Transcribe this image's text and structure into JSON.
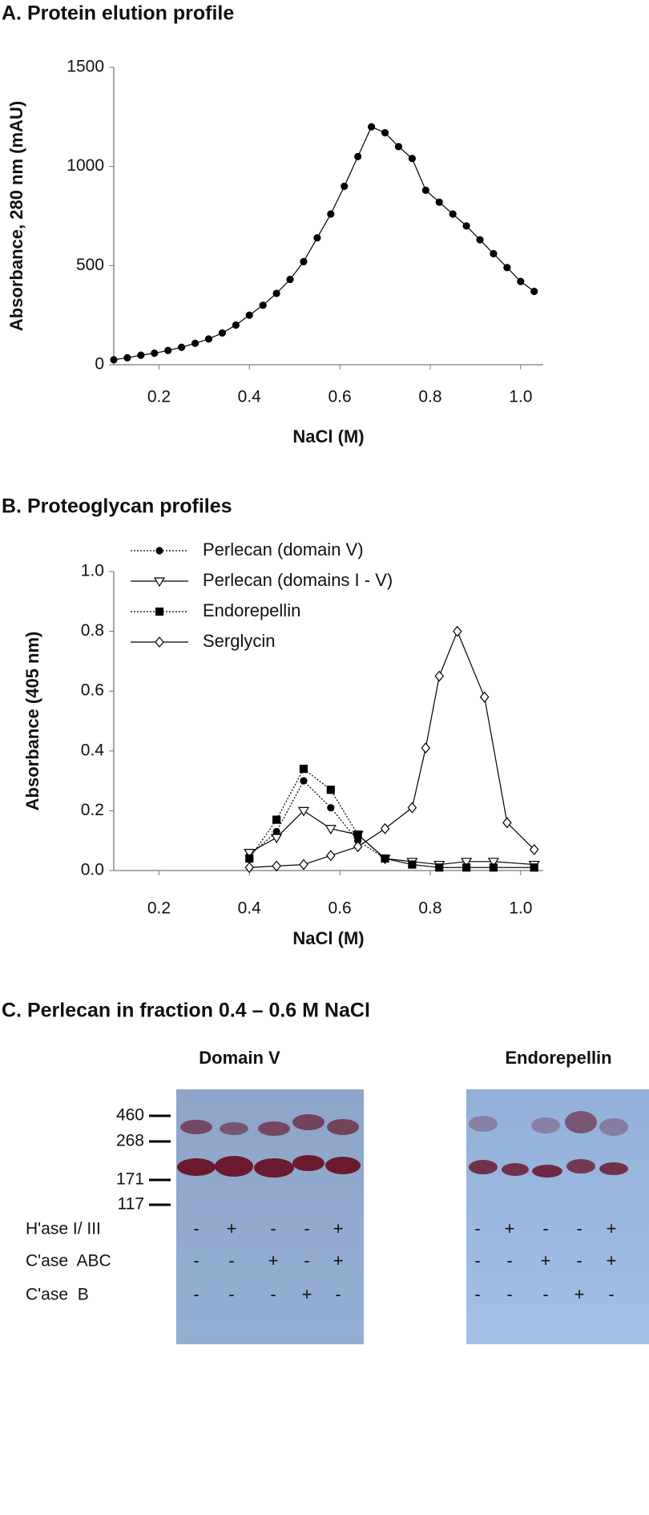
{
  "chart_data": [
    {
      "type": "line",
      "title": "A. Protein elution profile",
      "x_label": "NaCl (M)",
      "y_label": "Absorbance, 280 nm (mAU)",
      "x": [
        0.1,
        0.13,
        0.16,
        0.19,
        0.22,
        0.25,
        0.28,
        0.31,
        0.34,
        0.37,
        0.4,
        0.43,
        0.46,
        0.49,
        0.52,
        0.55,
        0.58,
        0.61,
        0.64,
        0.67,
        0.7,
        0.73,
        0.76,
        0.79,
        0.82,
        0.85,
        0.88,
        0.91,
        0.94,
        0.97,
        1.0,
        1.03
      ],
      "values": [
        25,
        35,
        48,
        58,
        72,
        88,
        108,
        130,
        160,
        200,
        250,
        300,
        360,
        430,
        520,
        640,
        760,
        900,
        1050,
        1200,
        1170,
        1100,
        1040,
        880,
        820,
        760,
        700,
        630,
        560,
        490,
        420,
        370
      ],
      "color": "#000000",
      "marker": "circle",
      "xlim": [
        0.1,
        1.05
      ],
      "ylim": [
        0,
        1500
      ],
      "xticks": [
        0.2,
        0.4,
        0.6,
        0.8,
        {
          "value": 1.0,
          "label": "1.0"
        }
      ],
      "yticks": [
        0,
        500,
        1000,
        1500
      ]
    },
    {
      "type": "line",
      "title": "B. Proteoglycan profiles",
      "x_label": "NaCl (M)",
      "y_label": "Absorbance (405 nm)",
      "legend": "upper left",
      "series": [
        {
          "name": "Perlecan (domain V)",
          "color": "#000000",
          "marker": "circle",
          "filled": true,
          "dash": "dotted",
          "x": [
            0.4,
            0.46,
            0.52,
            0.58,
            0.64,
            0.7,
            0.76,
            0.82,
            0.88,
            0.94,
            1.03
          ],
          "values": [
            0.05,
            0.13,
            0.3,
            0.21,
            0.1,
            0.04,
            0.02,
            0.01,
            0.01,
            0.01,
            0.01
          ]
        },
        {
          "name": "Perlecan (domains I - V)",
          "color": "#000000",
          "marker": "triangle-down",
          "filled": false,
          "dash": "solid",
          "x": [
            0.4,
            0.46,
            0.52,
            0.58,
            0.64,
            0.7,
            0.76,
            0.82,
            0.88,
            0.94,
            1.03
          ],
          "values": [
            0.06,
            0.11,
            0.2,
            0.14,
            0.12,
            0.04,
            0.03,
            0.02,
            0.03,
            0.03,
            0.02
          ]
        },
        {
          "name": "Endorepellin",
          "color": "#000000",
          "marker": "square",
          "filled": true,
          "dash": "dotted",
          "x": [
            0.4,
            0.46,
            0.52,
            0.58,
            0.64,
            0.7,
            0.76,
            0.82,
            0.88,
            0.94,
            1.03
          ],
          "values": [
            0.04,
            0.17,
            0.34,
            0.27,
            0.12,
            0.04,
            0.02,
            0.01,
            0.01,
            0.01,
            0.01
          ]
        },
        {
          "name": "Serglycin",
          "color": "#000000",
          "marker": "diamond",
          "filled": false,
          "dash": "solid",
          "x": [
            0.4,
            0.46,
            0.52,
            0.58,
            0.64,
            0.7,
            0.76,
            0.79,
            0.82,
            0.86,
            0.92,
            0.97,
            1.03
          ],
          "values": [
            0.01,
            0.015,
            0.02,
            0.05,
            0.08,
            0.14,
            0.21,
            0.41,
            0.65,
            0.8,
            0.58,
            0.16,
            0.07
          ]
        }
      ],
      "xlim": [
        0.1,
        1.05
      ],
      "ylim": [
        0,
        1
      ],
      "xticks": [
        0.2,
        0.4,
        0.6,
        0.8,
        {
          "value": 1.0,
          "label": "1.0"
        }
      ],
      "yticks": [
        {
          "value": 0,
          "label": "0.0"
        },
        0.2,
        0.4,
        0.6,
        0.8,
        {
          "value": 1,
          "label": "1.0"
        }
      ]
    }
  ],
  "blot": {
    "title": "C. Perlecan in fraction 0.4 – 0.6 M NaCl",
    "markers": [
      460,
      268,
      171,
      117
    ],
    "treatments": [
      "H'ase I/ III",
      "C'ase  ABC",
      "C'ase  B"
    ],
    "panels": [
      {
        "title": "Domain V",
        "signs": [
          [
            "-",
            "+",
            "-",
            "-",
            "+"
          ],
          [
            "-",
            "-",
            "+",
            "-",
            "+"
          ],
          [
            "-",
            "-",
            "-",
            "+",
            "-"
          ]
        ]
      },
      {
        "title": "Endorepellin",
        "signs": [
          [
            "-",
            "+",
            "-",
            "-",
            "+"
          ],
          [
            "-",
            "-",
            "+",
            "-",
            "+"
          ],
          [
            "-",
            "-",
            "-",
            "+",
            "-"
          ]
        ]
      }
    ]
  }
}
